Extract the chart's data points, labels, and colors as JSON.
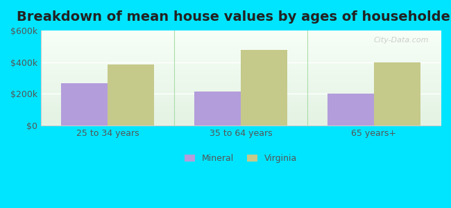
{
  "title": "Breakdown of mean house values by ages of householders",
  "categories": [
    "25 to 34 years",
    "35 to 64 years",
    "65 years+"
  ],
  "mineral_values": [
    265000,
    215000,
    200000
  ],
  "virginia_values": [
    385000,
    475000,
    400000
  ],
  "mineral_color": "#b39ddb",
  "virginia_color": "#c5c98a",
  "ylim": [
    0,
    600000
  ],
  "yticks": [
    0,
    200000,
    400000,
    600000
  ],
  "ytick_labels": [
    "$0",
    "$200k",
    "$400k",
    "$600k"
  ],
  "background_color": "#00e5ff",
  "plot_bg_top": "#f0fff0",
  "plot_bg_bottom": "#e0f0e0",
  "bar_width": 0.35,
  "legend_labels": [
    "Mineral",
    "Virginia"
  ],
  "title_fontsize": 14,
  "watermark": "City-Data.com"
}
